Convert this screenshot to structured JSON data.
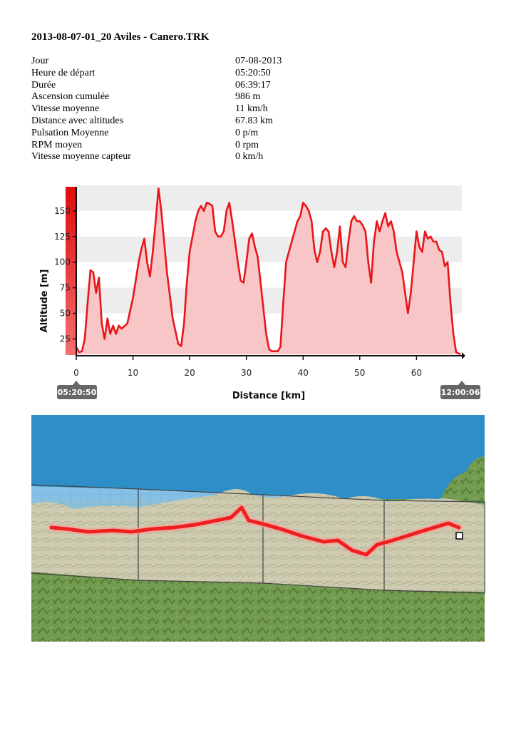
{
  "document": {
    "title": "2013-08-07-01_20 Aviles - Canero.TRK"
  },
  "stats": [
    {
      "label": "Jour",
      "value": "07-08-2013"
    },
    {
      "label": "Heure de départ",
      "value": "05:20:50"
    },
    {
      "label": "Durée",
      "value": "06:39:17"
    },
    {
      "label": "Ascension cumulée",
      "value": "986 m"
    },
    {
      "label": "Vitesse moyenne",
      "value": "11 km/h"
    },
    {
      "label": "Distance avec altitudes",
      "value": "67.83 km"
    },
    {
      "label": "Pulsation Moyenne",
      "value": "0 p/m"
    },
    {
      "label": "RPM moyen",
      "value": "0 rpm"
    },
    {
      "label": "Vitesse moyenne capteur",
      "value": "0 km/h"
    }
  ],
  "chart_data": {
    "type": "area",
    "xlabel": "Distance [km]",
    "ylabel": "Altitude [m]",
    "xlim": [
      0,
      68
    ],
    "ylim": [
      10,
      175
    ],
    "xticks": [
      "0",
      "10",
      "20",
      "30",
      "40",
      "50",
      "60"
    ],
    "yticks": [
      "25",
      "50",
      "75",
      "100",
      "125",
      "150"
    ],
    "start_time": "05:20:50",
    "end_time": "12:00:06",
    "grid": true,
    "colors": {
      "line": "#e8161a",
      "fill": "#f8c6c6",
      "band": "#ededed"
    },
    "series": [
      {
        "x": [
          0,
          0.5,
          1,
          1.5,
          2,
          2.5,
          3,
          3.5,
          4,
          4.5,
          5,
          5.5,
          6,
          6.5,
          7,
          7.5,
          8,
          9,
          10,
          11,
          11.5,
          12,
          12.5,
          13,
          13.5,
          14,
          14.5,
          15,
          15.5,
          16,
          17,
          18,
          18.5,
          19,
          19.5,
          20,
          21,
          21.5,
          22,
          22.5,
          23,
          23.5,
          24,
          24.5,
          25,
          25.5,
          26,
          26.5,
          27,
          27.5,
          28,
          28.5,
          29,
          29.5,
          30,
          30.5,
          31,
          31.5,
          32,
          32.5,
          33,
          33.5,
          34,
          34.5,
          35,
          35.5,
          36,
          36.5,
          37,
          38,
          38.5,
          39,
          39.5,
          40,
          40.5,
          41,
          41.5,
          42,
          42.5,
          43,
          43.5,
          44,
          44.5,
          45,
          45.5,
          46,
          46.5,
          47,
          47.5,
          48,
          48.5,
          49,
          49.5,
          50,
          50.5,
          51,
          51.5,
          52,
          52.5,
          53,
          53.5,
          54,
          54.5,
          55,
          55.5,
          56,
          56.5,
          57,
          57.5,
          58,
          58.5,
          59,
          59.5,
          60,
          60.5,
          61,
          61.5,
          62,
          62.5,
          63,
          63.5,
          64,
          64.5,
          65,
          65.5,
          66,
          66.5,
          67,
          67.8
        ],
        "y": [
          17,
          12,
          13,
          25,
          60,
          92,
          90,
          70,
          85,
          40,
          25,
          45,
          30,
          38,
          30,
          38,
          35,
          40,
          65,
          100,
          113,
          123,
          100,
          86,
          110,
          140,
          172,
          150,
          120,
          90,
          45,
          20,
          18,
          40,
          80,
          110,
          140,
          150,
          155,
          150,
          158,
          157,
          155,
          130,
          125,
          125,
          130,
          150,
          158,
          140,
          120,
          100,
          82,
          80,
          100,
          123,
          128,
          115,
          105,
          80,
          55,
          30,
          15,
          13,
          13,
          13,
          17,
          60,
          100,
          120,
          130,
          140,
          145,
          158,
          155,
          150,
          140,
          112,
          100,
          110,
          130,
          133,
          130,
          110,
          95,
          110,
          135,
          100,
          95,
          120,
          140,
          145,
          140,
          140,
          136,
          130,
          100,
          80,
          120,
          140,
          130,
          140,
          148,
          135,
          140,
          130,
          110,
          100,
          90,
          70,
          50,
          70,
          100,
          130,
          115,
          110,
          130,
          123,
          125,
          120,
          120,
          112,
          110,
          96,
          100,
          60,
          30,
          12,
          10
        ]
      }
    ]
  },
  "map": {
    "colors": {
      "sea": "#2e8fc8",
      "land": "#cbc9ad",
      "hills": "#6f9a4d",
      "route": "#ee1f1f"
    }
  }
}
